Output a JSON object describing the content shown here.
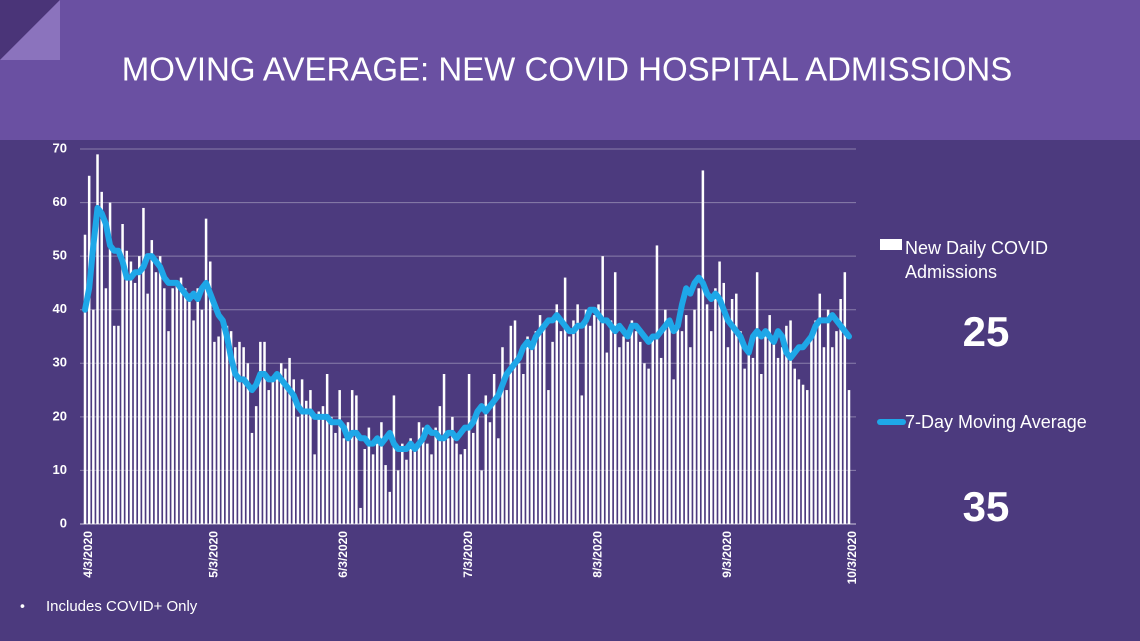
{
  "chart_data": {
    "type": "bar_line",
    "title": "MOVING AVERAGE: NEW COVID HOSPITAL ADMISSIONS",
    "footnote": "Includes COVID+ Only",
    "categories": [
      "4/3/2020",
      null,
      null,
      null,
      null,
      null,
      null,
      null,
      null,
      null,
      null,
      null,
      null,
      null,
      null,
      null,
      null,
      null,
      null,
      null,
      null,
      null,
      null,
      null,
      null,
      null,
      null,
      null,
      null,
      null,
      "5/3/2020",
      null,
      null,
      null,
      null,
      null,
      null,
      null,
      null,
      null,
      null,
      null,
      null,
      null,
      null,
      null,
      null,
      null,
      null,
      null,
      null,
      null,
      null,
      null,
      null,
      null,
      null,
      null,
      null,
      null,
      null,
      "6/3/2020",
      null,
      null,
      null,
      null,
      null,
      null,
      null,
      null,
      null,
      null,
      null,
      null,
      null,
      null,
      null,
      null,
      null,
      null,
      null,
      null,
      null,
      null,
      null,
      null,
      null,
      null,
      null,
      null,
      null,
      "7/3/2020",
      null,
      null,
      null,
      null,
      null,
      null,
      null,
      null,
      null,
      null,
      null,
      null,
      null,
      null,
      null,
      null,
      null,
      null,
      null,
      null,
      null,
      null,
      null,
      null,
      null,
      null,
      null,
      null,
      null,
      null,
      "8/3/2020",
      null,
      null,
      null,
      null,
      null,
      null,
      null,
      null,
      null,
      null,
      null,
      null,
      null,
      null,
      null,
      null,
      null,
      null,
      null,
      null,
      null,
      null,
      null,
      null,
      null,
      null,
      null,
      null,
      null,
      null,
      "9/3/2020",
      null,
      null,
      null,
      null,
      null,
      null,
      null,
      null,
      null,
      null,
      null,
      null,
      null,
      null,
      null,
      null,
      null,
      null,
      null,
      null,
      null,
      null,
      null,
      null,
      null,
      null,
      null,
      null,
      null,
      "10/3/2020"
    ],
    "series": [
      {
        "name": "New Daily COVID Admissions",
        "kind": "bar",
        "color": "#ffffff",
        "values": [
          54,
          65,
          40,
          69,
          62,
          44,
          60,
          37,
          37,
          56,
          51,
          49,
          45,
          50,
          59,
          43,
          53,
          47,
          50,
          44,
          36,
          44,
          45,
          46,
          44,
          43,
          38,
          44,
          40,
          57,
          49,
          34,
          35,
          38,
          37,
          36,
          33,
          34,
          33,
          30,
          17,
          22,
          34,
          34,
          25,
          27,
          28,
          30,
          29,
          31,
          27,
          20,
          27,
          23,
          25,
          13,
          21,
          22,
          28,
          20,
          17,
          25,
          16,
          19,
          25,
          24,
          3,
          14,
          18,
          13,
          15,
          19,
          11,
          6,
          24,
          10,
          15,
          12,
          16,
          14,
          19,
          18,
          15,
          13,
          18,
          22,
          28,
          16,
          20,
          15,
          13,
          14,
          28,
          17,
          20,
          10,
          24,
          19,
          28,
          16,
          33,
          25,
          37,
          38,
          30,
          28,
          35,
          33,
          36,
          39,
          37,
          25,
          34,
          41,
          36,
          46,
          35,
          38,
          41,
          24,
          40,
          37,
          39,
          41,
          50,
          32,
          38,
          47,
          33,
          35,
          34,
          38,
          36,
          34,
          30,
          29,
          35,
          52,
          31,
          40,
          37,
          27,
          38,
          36,
          39,
          33,
          40,
          44,
          66,
          41,
          36,
          44,
          49,
          45,
          33,
          42,
          43,
          36,
          29,
          33,
          31,
          47,
          28,
          36,
          39,
          34,
          31,
          33,
          37,
          38,
          29,
          27,
          26,
          25,
          35,
          38,
          43,
          33,
          40,
          33,
          36,
          42,
          47,
          25
        ]
      },
      {
        "name": "7-Day Moving Average",
        "kind": "line",
        "color": "#1ea7e8",
        "values": [
          40,
          44,
          52,
          59,
          58,
          56,
          52,
          51,
          51,
          49,
          46,
          46,
          47,
          47,
          48,
          50,
          50,
          49,
          48,
          46,
          45,
          45,
          45,
          44,
          43,
          42,
          43,
          42,
          44,
          45,
          43,
          41,
          39,
          38,
          35,
          31,
          28,
          27,
          27,
          26,
          25,
          26,
          28,
          28,
          27,
          27,
          28,
          27,
          26,
          25,
          24,
          22,
          21,
          21,
          21,
          20,
          20,
          20,
          20,
          19,
          19,
          19,
          18,
          16,
          17,
          17,
          16,
          16,
          15,
          15,
          16,
          15,
          16,
          17,
          15,
          14,
          14,
          14,
          15,
          14,
          15,
          16,
          18,
          17,
          17,
          16,
          16,
          17,
          17,
          16,
          17,
          18,
          18,
          19,
          21,
          22,
          21,
          22,
          23,
          24,
          26,
          28,
          29,
          30,
          31,
          33,
          34,
          33,
          35,
          36,
          37,
          38,
          38,
          39,
          38,
          37,
          36,
          36,
          37,
          37,
          38,
          40,
          40,
          39,
          38,
          38,
          37,
          36,
          37,
          36,
          35,
          37,
          37,
          36,
          35,
          34,
          35,
          35,
          36,
          37,
          38,
          36,
          37,
          41,
          44,
          43,
          45,
          46,
          45,
          43,
          42,
          43,
          42,
          40,
          38,
          37,
          36,
          35,
          33,
          32,
          35,
          36,
          35,
          36,
          35,
          34,
          36,
          35,
          32,
          31,
          32,
          33,
          33,
          34,
          35,
          37,
          38,
          38,
          38,
          39,
          38,
          37,
          36,
          35
        ]
      }
    ],
    "ylim": [
      0,
      70
    ],
    "yticks": [
      0,
      10,
      20,
      30,
      40,
      50,
      60,
      70
    ],
    "grid": true
  }
}
